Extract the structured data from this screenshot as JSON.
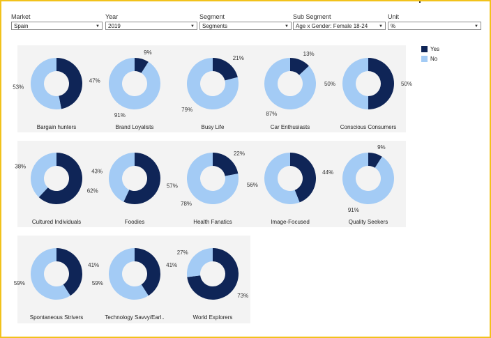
{
  "filters": {
    "market": {
      "label": "Market",
      "value": "Spain"
    },
    "year": {
      "label": "Year",
      "value": "2019"
    },
    "segment": {
      "label": "Segment",
      "value": "Segments"
    },
    "sub_segment": {
      "label": "Sub Segment",
      "value": "Age x Gender: Female 18-24"
    },
    "unit": {
      "label": "Unit",
      "value": "%"
    }
  },
  "legend": [
    {
      "label": "Yes",
      "color": "#0f2557"
    },
    {
      "label": "No",
      "color": "#a3cbf5"
    }
  ],
  "chart_data": {
    "type": "pie",
    "variant": "donut-small-multiples",
    "series_names": [
      "Yes",
      "No"
    ],
    "colors": {
      "Yes": "#0f2557",
      "No": "#a3cbf5"
    },
    "legend_position": "top-right",
    "charts": [
      {
        "name": "Bargain hunters",
        "yes": 47,
        "no": 53
      },
      {
        "name": "Brand Loyalists",
        "yes": 9,
        "no": 91
      },
      {
        "name": "Busy Life",
        "yes": 21,
        "no": 79
      },
      {
        "name": "Car Enthusiasts",
        "yes": 13,
        "no": 87
      },
      {
        "name": "Conscious Consumers",
        "yes": 50,
        "no": 50
      },
      {
        "name": "Cultured Individuals",
        "yes": 62,
        "no": 38
      },
      {
        "name": "Foodies",
        "yes": 57,
        "no": 43
      },
      {
        "name": "Health Fanatics",
        "yes": 22,
        "no": 78
      },
      {
        "name": "Image-Focused",
        "yes": 44,
        "no": 56
      },
      {
        "name": "Quality Seekers",
        "yes": 9,
        "no": 91
      },
      {
        "name": "Spontaneous Strivers",
        "yes": 41,
        "no": 59
      },
      {
        "name": "Technology Savvy/Earl..",
        "yes": 41,
        "no": 59
      },
      {
        "name": "World Explorers",
        "yes": 73,
        "no": 27
      }
    ]
  }
}
